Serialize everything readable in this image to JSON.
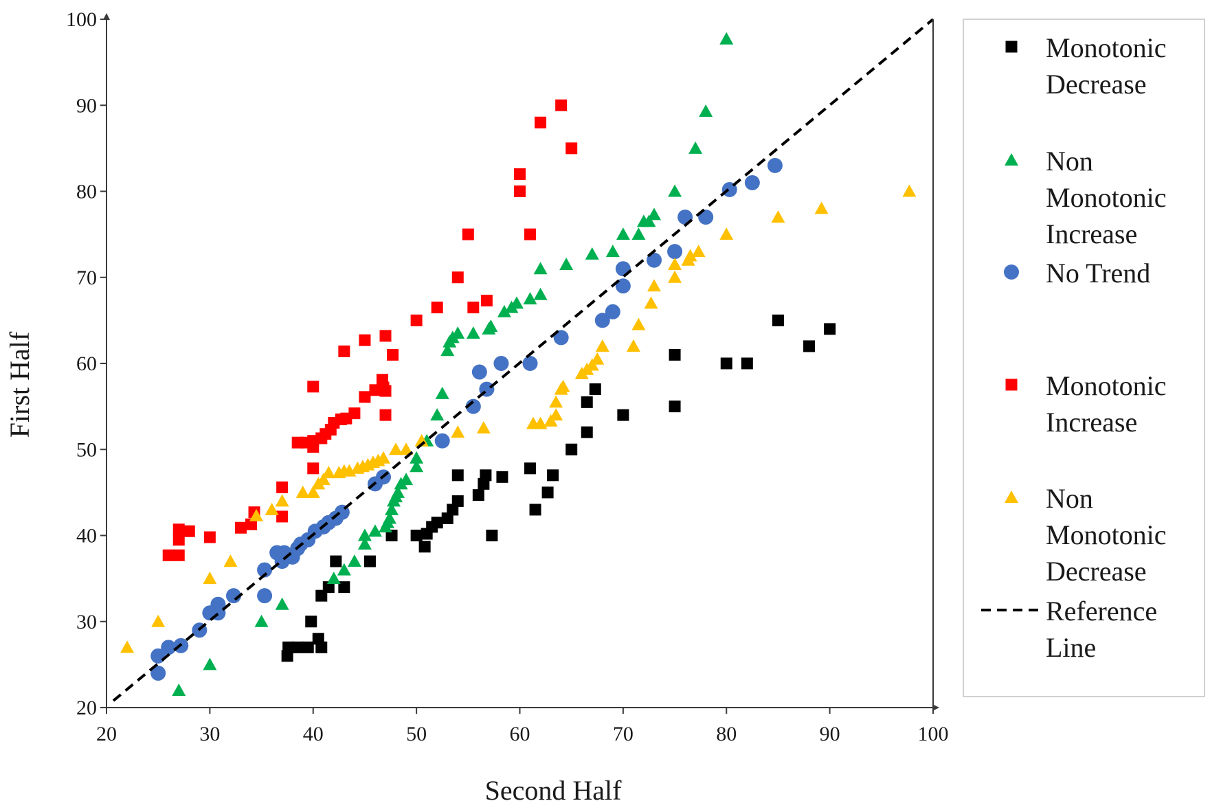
{
  "chart_data": {
    "type": "scatter",
    "title": "",
    "xlabel": "Second Half",
    "ylabel": "First Half",
    "xlim": [
      20,
      100
    ],
    "ylim": [
      20,
      100
    ],
    "xticks": [
      20,
      30,
      40,
      50,
      60,
      70,
      80,
      90,
      100
    ],
    "yticks": [
      20,
      30,
      40,
      50,
      60,
      70,
      80,
      90,
      100
    ],
    "grid": false,
    "legend_position": "right",
    "colors": {
      "monotonic_decrease": "#000000",
      "non_monotonic_increase": "#00b050",
      "no_trend": "#4472c4",
      "monotonic_increase": "#ff0000",
      "non_monotonic_decrease": "#ffc000",
      "reference": "#000000"
    },
    "legend": [
      {
        "key": "monotonic_decrease",
        "lines": [
          "Monotonic",
          "Decrease"
        ],
        "marker": "square"
      },
      {
        "key": "non_monotonic_increase",
        "lines": [
          "Non",
          "Monotonic",
          "Increase"
        ],
        "marker": "triangle"
      },
      {
        "key": "no_trend",
        "lines": [
          "No Trend"
        ],
        "marker": "circle"
      },
      {
        "key": "monotonic_increase",
        "lines": [
          "Monotonic",
          "Increase"
        ],
        "marker": "square"
      },
      {
        "key": "non_monotonic_decrease",
        "lines": [
          "Non",
          "Monotonic",
          "Decrease"
        ],
        "marker": "triangle"
      },
      {
        "key": "reference",
        "lines": [
          "Reference",
          "Line"
        ],
        "marker": "dashed-line"
      }
    ],
    "reference_line": {
      "x": [
        20,
        100
      ],
      "y": [
        20,
        100
      ]
    },
    "series": [
      {
        "key": "monotonic_decrease",
        "name": "Monotonic Decrease",
        "marker": "square",
        "points": [
          [
            37.5,
            26
          ],
          [
            37.6,
            27
          ],
          [
            38.5,
            27
          ],
          [
            39.5,
            27
          ],
          [
            39.8,
            30
          ],
          [
            40.5,
            28
          ],
          [
            40.8,
            27
          ],
          [
            40.8,
            33
          ],
          [
            41.5,
            34
          ],
          [
            42.2,
            37
          ],
          [
            43,
            34
          ],
          [
            45.5,
            37
          ],
          [
            47.6,
            40
          ],
          [
            50,
            40
          ],
          [
            50.8,
            38.7
          ],
          [
            51,
            40.2
          ],
          [
            51.5,
            41
          ],
          [
            52,
            41.5
          ],
          [
            53,
            42
          ],
          [
            53.5,
            43
          ],
          [
            54,
            44
          ],
          [
            54,
            47
          ],
          [
            56,
            44.7
          ],
          [
            56.5,
            46
          ],
          [
            56.7,
            47
          ],
          [
            57.3,
            40
          ],
          [
            58.3,
            46.8
          ],
          [
            61,
            47.8
          ],
          [
            61.5,
            43
          ],
          [
            62.7,
            45
          ],
          [
            63.2,
            47
          ],
          [
            65,
            50
          ],
          [
            66.5,
            52
          ],
          [
            66.5,
            55.5
          ],
          [
            67.3,
            57
          ],
          [
            70,
            54
          ],
          [
            75,
            55
          ],
          [
            75,
            61
          ],
          [
            80,
            60
          ],
          [
            82,
            60
          ],
          [
            85,
            65
          ],
          [
            88,
            62
          ],
          [
            90,
            64
          ]
        ]
      },
      {
        "key": "non_monotonic_increase",
        "name": "Non Monotonic Increase",
        "marker": "triangle",
        "points": [
          [
            27,
            22
          ],
          [
            30,
            25
          ],
          [
            35,
            30
          ],
          [
            37,
            32
          ],
          [
            42,
            35
          ],
          [
            43,
            36
          ],
          [
            44,
            37
          ],
          [
            45,
            39
          ],
          [
            45,
            40
          ],
          [
            46,
            40.5
          ],
          [
            47,
            41
          ],
          [
            47.2,
            41.5
          ],
          [
            47.4,
            42
          ],
          [
            47.6,
            43
          ],
          [
            47.8,
            44
          ],
          [
            48,
            44.5
          ],
          [
            48.2,
            45
          ],
          [
            48.5,
            46
          ],
          [
            49,
            46.5
          ],
          [
            50,
            48
          ],
          [
            50,
            49
          ],
          [
            51,
            51
          ],
          [
            52,
            54
          ],
          [
            52.5,
            56.5
          ],
          [
            53,
            61.5
          ],
          [
            53.2,
            62.5
          ],
          [
            53.5,
            63
          ],
          [
            54,
            63.5
          ],
          [
            55.5,
            63.5
          ],
          [
            57,
            64
          ],
          [
            57.2,
            64.3
          ],
          [
            58.5,
            66
          ],
          [
            59.2,
            66.5
          ],
          [
            59.7,
            67
          ],
          [
            61,
            67.5
          ],
          [
            62,
            68
          ],
          [
            62,
            71
          ],
          [
            64.5,
            71.5
          ],
          [
            67,
            72.7
          ],
          [
            69,
            73
          ],
          [
            70,
            75
          ],
          [
            71.5,
            75
          ],
          [
            72,
            76.5
          ],
          [
            72.5,
            76.5
          ],
          [
            73,
            77.3
          ],
          [
            75,
            80
          ],
          [
            77,
            85
          ],
          [
            78,
            89.3
          ],
          [
            80,
            97.7
          ]
        ]
      },
      {
        "key": "no_trend",
        "name": "No Trend",
        "marker": "circle",
        "points": [
          [
            25,
            24
          ],
          [
            25,
            26
          ],
          [
            26,
            27
          ],
          [
            27.2,
            27.2
          ],
          [
            29,
            29
          ],
          [
            30,
            31
          ],
          [
            30.8,
            31
          ],
          [
            30.8,
            32
          ],
          [
            32.3,
            33
          ],
          [
            35.3,
            33
          ],
          [
            35.3,
            36
          ],
          [
            36.5,
            38
          ],
          [
            37,
            37
          ],
          [
            37.2,
            38
          ],
          [
            38,
            37.5
          ],
          [
            38.5,
            38.5
          ],
          [
            38.8,
            39
          ],
          [
            39.5,
            39.5
          ],
          [
            40.2,
            40.5
          ],
          [
            41,
            41
          ],
          [
            41.5,
            41.5
          ],
          [
            42.2,
            42
          ],
          [
            42.8,
            42.7
          ],
          [
            46,
            46
          ],
          [
            46.8,
            46.8
          ],
          [
            52.5,
            51
          ],
          [
            55.5,
            55
          ],
          [
            56.1,
            59
          ],
          [
            56.8,
            57
          ],
          [
            58.2,
            60
          ],
          [
            61,
            60
          ],
          [
            64,
            63
          ],
          [
            68,
            65
          ],
          [
            69,
            66
          ],
          [
            70,
            69
          ],
          [
            70,
            71
          ],
          [
            73,
            72
          ],
          [
            75,
            73
          ],
          [
            76,
            77
          ],
          [
            78,
            77
          ],
          [
            80.3,
            80.2
          ],
          [
            82.5,
            81
          ],
          [
            84.7,
            83
          ]
        ]
      },
      {
        "key": "monotonic_increase",
        "name": "Monotonic Increase",
        "marker": "square",
        "points": [
          [
            26,
            37.7
          ],
          [
            27,
            37.7
          ],
          [
            27,
            39.5
          ],
          [
            27,
            40.7
          ],
          [
            28,
            40.5
          ],
          [
            30,
            39.8
          ],
          [
            33,
            40.9
          ],
          [
            34,
            41.3
          ],
          [
            34.3,
            42.7
          ],
          [
            37,
            42.2
          ],
          [
            37,
            45.6
          ],
          [
            38.5,
            50.8
          ],
          [
            39.3,
            50.8
          ],
          [
            40,
            47.8
          ],
          [
            40,
            50.3
          ],
          [
            40,
            51
          ],
          [
            40,
            57.3
          ],
          [
            40.8,
            51.3
          ],
          [
            41.2,
            51.8
          ],
          [
            41.7,
            52.3
          ],
          [
            42,
            53.1
          ],
          [
            42.7,
            53.5
          ],
          [
            43.2,
            53.6
          ],
          [
            43,
            61.4
          ],
          [
            44,
            54.2
          ],
          [
            45,
            56.1
          ],
          [
            45,
            62.7
          ],
          [
            46,
            56.9
          ],
          [
            46.8,
            57.2
          ],
          [
            46.7,
            58.1
          ],
          [
            47,
            54
          ],
          [
            47,
            56.8
          ],
          [
            47,
            63.2
          ],
          [
            47.7,
            61
          ],
          [
            50,
            65
          ],
          [
            52,
            66.5
          ],
          [
            54,
            70
          ],
          [
            55,
            75
          ],
          [
            55.5,
            66.5
          ],
          [
            56.8,
            67.3
          ],
          [
            60,
            80
          ],
          [
            60,
            82
          ],
          [
            61,
            75
          ],
          [
            62,
            88
          ],
          [
            64,
            90
          ],
          [
            65,
            85
          ]
        ]
      },
      {
        "key": "non_monotonic_decrease",
        "name": "Non Monotonic Decrease",
        "marker": "triangle",
        "points": [
          [
            22,
            27
          ],
          [
            25,
            30
          ],
          [
            30,
            35
          ],
          [
            32,
            37
          ],
          [
            34.5,
            42.3
          ],
          [
            36,
            43
          ],
          [
            37,
            44
          ],
          [
            39,
            45
          ],
          [
            40,
            45
          ],
          [
            40.5,
            46
          ],
          [
            41,
            46.5
          ],
          [
            41.5,
            47.3
          ],
          [
            42.5,
            47.3
          ],
          [
            43,
            47.5
          ],
          [
            43.5,
            47.5
          ],
          [
            44.3,
            47.8
          ],
          [
            44.8,
            48
          ],
          [
            45.3,
            48.2
          ],
          [
            45.8,
            48.5
          ],
          [
            46.3,
            48.7
          ],
          [
            46.8,
            49
          ],
          [
            48,
            50
          ],
          [
            49,
            50
          ],
          [
            50.5,
            51
          ],
          [
            54,
            52
          ],
          [
            56.5,
            52.5
          ],
          [
            61.3,
            53
          ],
          [
            62,
            53
          ],
          [
            63,
            53.3
          ],
          [
            63.5,
            54
          ],
          [
            63.5,
            55.5
          ],
          [
            64,
            57
          ],
          [
            64.2,
            57.3
          ],
          [
            66,
            58.8
          ],
          [
            66.5,
            59.3
          ],
          [
            67,
            59.8
          ],
          [
            67.5,
            60.5
          ],
          [
            68,
            62
          ],
          [
            71,
            62
          ],
          [
            71.5,
            64.5
          ],
          [
            72.7,
            67
          ],
          [
            73,
            69
          ],
          [
            75,
            70
          ],
          [
            75,
            71.5
          ],
          [
            76.3,
            72
          ],
          [
            76.5,
            72.5
          ],
          [
            77.3,
            73
          ],
          [
            80,
            75
          ],
          [
            85,
            77
          ],
          [
            89.2,
            78
          ],
          [
            97.7,
            80
          ]
        ]
      }
    ]
  }
}
